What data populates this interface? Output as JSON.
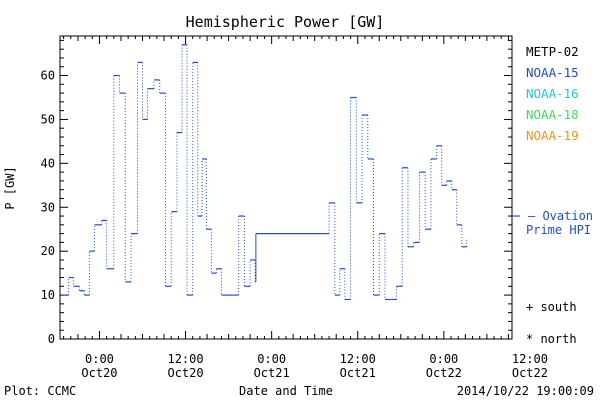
{
  "chart_data": {
    "type": "line",
    "title": "Hemispheric Power [GW]",
    "xlabel": "Date and Time",
    "ylabel": "P [GW]",
    "ylim": [
      0,
      69
    ],
    "yticks": [
      0,
      10,
      20,
      30,
      40,
      50,
      60
    ],
    "xlim_hours": [
      -5.5,
      57.5
    ],
    "xticks": [
      {
        "h": 0,
        "time": "0:00",
        "date": "Oct20"
      },
      {
        "h": 12,
        "time": "12:00",
        "date": "Oct20"
      },
      {
        "h": 24,
        "time": "0:00",
        "date": "Oct21"
      },
      {
        "h": 36,
        "time": "12:00",
        "date": "Oct21"
      },
      {
        "h": 48,
        "time": "0:00",
        "date": "Oct22"
      },
      {
        "h": 60,
        "time": "12:00",
        "date": "Oct22"
      }
    ],
    "legend": [
      {
        "name": "METP-02",
        "color": "#000000"
      },
      {
        "name": "NOAA-15",
        "color": "#1f4fbf"
      },
      {
        "name": "NOAA-16",
        "color": "#22c7d9"
      },
      {
        "name": "NOAA-18",
        "color": "#3ddc5a"
      },
      {
        "name": "NOAA-19",
        "color": "#f0921c"
      }
    ],
    "ovation": {
      "value": 28,
      "label_line1": "— Ovation",
      "label_line2": "Prime HPI",
      "color": "#1f4fbf"
    },
    "series": [
      {
        "name": "NOAA-15",
        "color": "#1f4fbf",
        "points": [
          [
            -5.0,
            10
          ],
          [
            -4.3,
            14
          ],
          [
            -3.6,
            12
          ],
          [
            -2.8,
            11
          ],
          [
            -2.1,
            10
          ],
          [
            -1.4,
            20
          ],
          [
            -0.7,
            26
          ],
          [
            0.3,
            27
          ],
          [
            1.0,
            16
          ],
          [
            2.0,
            60
          ],
          [
            2.8,
            56
          ],
          [
            3.6,
            13
          ],
          [
            4.4,
            24
          ],
          [
            5.3,
            63
          ],
          [
            6.0,
            50
          ],
          [
            6.7,
            57
          ],
          [
            7.6,
            59
          ],
          [
            8.4,
            56
          ],
          [
            9.2,
            12
          ],
          [
            10.0,
            29
          ],
          [
            10.8,
            47
          ],
          [
            11.5,
            67
          ],
          [
            12.2,
            10
          ],
          [
            13.0,
            63
          ],
          [
            13.7,
            28
          ],
          [
            14.3,
            41
          ],
          [
            14.9,
            25
          ],
          [
            15.6,
            15
          ],
          [
            16.3,
            16
          ],
          [
            17.0,
            10
          ],
          [
            17.8,
            10
          ],
          [
            18.5,
            10
          ],
          [
            19.4,
            28
          ],
          [
            20.2,
            12
          ],
          [
            21.0,
            18
          ],
          [
            21.7,
            13
          ],
          [
            21.8,
            24
          ],
          [
            31.0,
            24
          ],
          [
            32.0,
            31
          ],
          [
            32.8,
            10
          ],
          [
            33.5,
            16
          ],
          [
            34.2,
            9
          ],
          [
            35.0,
            55
          ],
          [
            35.8,
            31
          ],
          [
            36.6,
            51
          ],
          [
            37.4,
            41
          ],
          [
            38.2,
            10
          ],
          [
            39.0,
            24
          ],
          [
            39.8,
            9
          ],
          [
            40.6,
            9
          ],
          [
            41.4,
            12
          ],
          [
            42.2,
            39
          ],
          [
            43.0,
            21
          ],
          [
            43.8,
            22
          ],
          [
            44.6,
            38
          ],
          [
            45.4,
            25
          ],
          [
            46.2,
            41
          ],
          [
            47.0,
            44
          ],
          [
            47.7,
            35
          ],
          [
            48.4,
            36
          ],
          [
            49.1,
            34
          ],
          [
            49.8,
            26
          ],
          [
            50.5,
            21
          ],
          [
            51.2,
            23
          ]
        ]
      }
    ],
    "markers": [
      {
        "symbol": "+",
        "label": "south"
      },
      {
        "symbol": "*",
        "label": "north"
      }
    ]
  },
  "footer": {
    "plot_credit": "Plot: CCMC",
    "timestamp": "2014/10/22 19:00:09"
  }
}
